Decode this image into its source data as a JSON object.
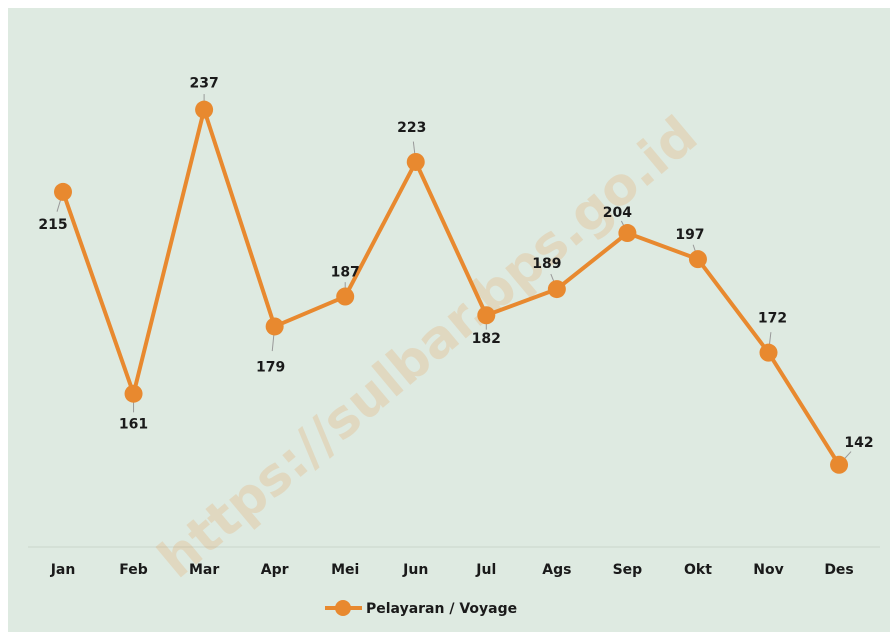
{
  "chart_data": {
    "type": "line",
    "categories": [
      "Jan",
      "Feb",
      "Mar",
      "Apr",
      "Mei",
      "Jun",
      "Jul",
      "Ags",
      "Sep",
      "Okt",
      "Nov",
      "Des"
    ],
    "series": [
      {
        "name": "Pelayaran / Voyage",
        "color": "#e8892f",
        "values": [
          215,
          161,
          237,
          179,
          187,
          223,
          182,
          189,
          204,
          197,
          172,
          142
        ]
      }
    ],
    "ylim": [
      120,
      265
    ],
    "watermark": "https://sulbar.bps.go.id"
  }
}
